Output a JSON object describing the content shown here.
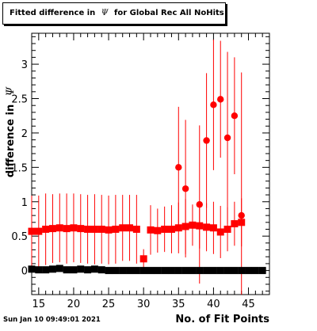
{
  "title": "Fitted difference in",
  "title_symbol": "Ψ",
  "title_suffix": "for Global Rec All NoHits",
  "timestamp": "Sun Jan 10 09:49:01 2021",
  "chart_data": {
    "type": "scatter",
    "xlabel": "No. of Fit Points",
    "ylabel": "difference in",
    "ylabel_symbol": "Ψ",
    "xlim": [
      14,
      48
    ],
    "ylim": [
      -0.35,
      3.45
    ],
    "xticks": [
      15,
      20,
      25,
      30,
      35,
      40,
      45
    ],
    "yticks": [
      0,
      0.5,
      1,
      1.5,
      2,
      2.5,
      3
    ],
    "ytick_labels": [
      "0",
      "0.5",
      "1",
      "1.5",
      "2",
      "2.5",
      "3"
    ],
    "grid": false,
    "series": [
      {
        "color": "#ff0000",
        "marker": "square",
        "x": [
          14,
          15,
          16,
          17,
          18,
          19,
          20,
          21,
          22,
          23,
          24,
          25,
          26,
          27,
          28,
          29,
          30,
          31,
          32,
          33,
          34,
          35,
          36,
          37,
          38,
          39,
          40,
          41,
          42,
          43,
          44
        ],
        "y": [
          0.57,
          0.57,
          0.6,
          0.61,
          0.62,
          0.61,
          0.62,
          0.61,
          0.6,
          0.6,
          0.6,
          0.59,
          0.6,
          0.62,
          0.62,
          0.6,
          0.17,
          0.59,
          0.58,
          0.6,
          0.6,
          0.62,
          0.64,
          0.66,
          0.65,
          0.63,
          0.62,
          0.56,
          0.6,
          0.68,
          0.7
        ],
        "err": [
          0.52,
          0.52,
          0.52,
          0.5,
          0.5,
          0.51,
          0.5,
          0.5,
          0.5,
          0.51,
          0.5,
          0.5,
          0.5,
          0.48,
          0.48,
          0.5,
          0.14,
          0.36,
          0.32,
          0.33,
          0.35,
          0.37,
          0.4,
          0.3,
          0.33,
          0.35,
          0.38,
          0.38,
          0.32,
          0.32,
          0.35
        ]
      },
      {
        "color": "#ff0000",
        "marker": "circle",
        "x": [
          35,
          36,
          38,
          39,
          40,
          41,
          42,
          43,
          44
        ],
        "y": [
          1.5,
          1.19,
          0.96,
          1.89,
          2.41,
          2.49,
          1.93,
          2.25,
          0.8
        ],
        "err": [
          0.88,
          1.0,
          1.15,
          0.98,
          0.95,
          0.85,
          1.25,
          0.85,
          2.08
        ]
      },
      {
        "color": "#000000",
        "marker": "square",
        "x": [
          14,
          15,
          16,
          17,
          18,
          19,
          20,
          21,
          22,
          23,
          24,
          25,
          26,
          27,
          28,
          29,
          30,
          31,
          32,
          33,
          34,
          35,
          36,
          37,
          38,
          39,
          40,
          41,
          42,
          43,
          44,
          45,
          46,
          47
        ],
        "y": [
          0.02,
          0.01,
          0.01,
          0.02,
          0.03,
          0.01,
          0.01,
          0.02,
          0.01,
          0.02,
          0.01,
          0.0,
          0.0,
          0.0,
          0.0,
          0.0,
          0.0,
          0.0,
          0.0,
          0.0,
          0.0,
          0.0,
          0.0,
          0.0,
          0.0,
          0.0,
          0.0,
          0.0,
          0.0,
          0.0,
          0.0,
          0.0,
          0.0,
          0.0
        ]
      }
    ]
  }
}
